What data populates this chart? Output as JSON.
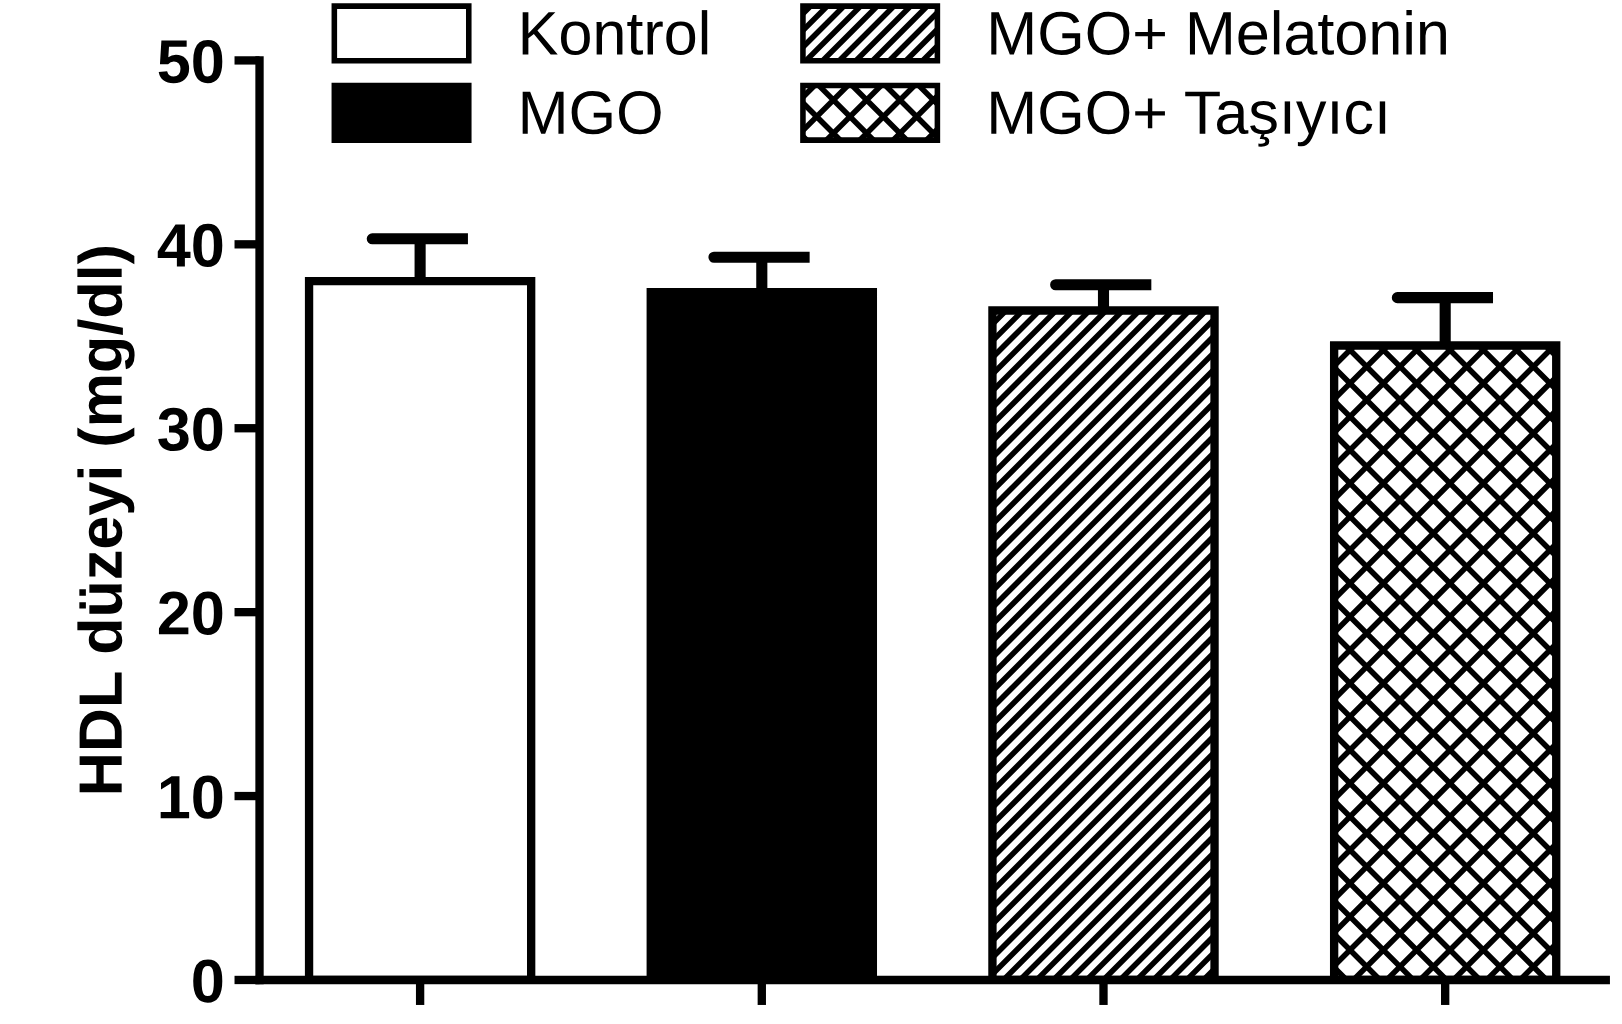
{
  "chart_data": {
    "type": "bar",
    "ylabel": "HDL düzeyi (mg/dl)",
    "categories": [
      null,
      null,
      null,
      null
    ],
    "series": [
      {
        "name": "Kontrol",
        "color": "#ffffff",
        "values": [
          38.0,
          null,
          null,
          null
        ],
        "errors": [
          [
            38.0,
            40.3
          ],
          null,
          null,
          null
        ]
      },
      {
        "name": "MGO",
        "color": "#000000",
        "values": [
          null,
          37.4,
          null,
          null
        ],
        "errors": [
          null,
          [
            37.4,
            39.3
          ],
          null,
          null
        ]
      },
      {
        "name": "MGO+ Melatonin",
        "color": "#000000",
        "values": [
          null,
          null,
          36.4,
          null
        ],
        "errors": [
          null,
          null,
          [
            36.4,
            37.8
          ],
          null
        ]
      },
      {
        "name": "MGO+ Taşıyıcı",
        "color": "#000000",
        "values": [
          null,
          null,
          null,
          34.5
        ],
        "errors": [
          null,
          null,
          null,
          [
            34.5,
            37.1
          ]
        ]
      }
    ],
    "ylim": [
      0,
      50
    ],
    "yticks": [
      0,
      10,
      20,
      30,
      40,
      50
    ],
    "grid": false,
    "legend": "top",
    "tick_labels": "y"
  }
}
